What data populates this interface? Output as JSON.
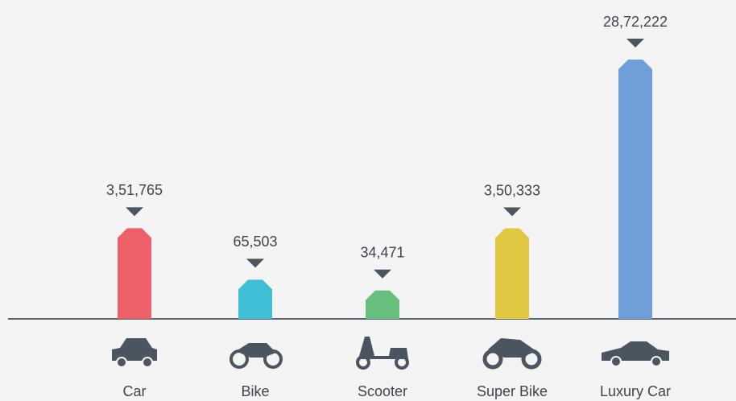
{
  "chart_data": {
    "type": "bar",
    "categories": [
      "Car",
      "Bike",
      "Scooter",
      "Super Bike",
      "Luxury Car"
    ],
    "values": [
      351765,
      65503,
      34471,
      350333,
      2872222
    ],
    "value_labels": [
      "3,51,765",
      "65,503",
      "34,471",
      "3,50,333",
      "28,72,222"
    ],
    "colors": [
      "#ee6068",
      "#3ebfd6",
      "#66bf7c",
      "#e0c843",
      "#6f9ed8"
    ]
  }
}
